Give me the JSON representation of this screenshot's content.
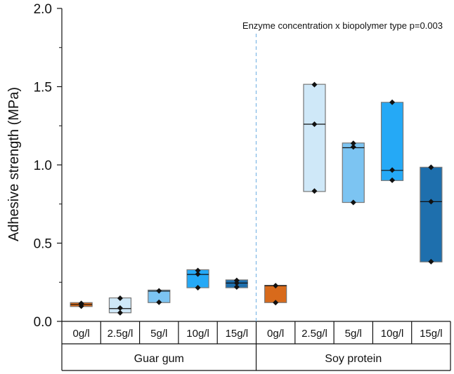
{
  "chart_data": {
    "type": "box",
    "ylabel": "Adhesive strength (MPa)",
    "ylim": [
      0,
      2.0
    ],
    "yticks": [
      0.0,
      0.5,
      1.0,
      1.5,
      2.0
    ],
    "ytick_labels": [
      "0.0",
      "0.5",
      "1.0",
      "1.5",
      "2.0"
    ],
    "annotation": "Enzyme concentration x biopolymer type p=0.003",
    "groups": [
      {
        "name": "Guar gum",
        "categories": [
          {
            "label": "0g/l",
            "min": 0.095,
            "max": 0.12,
            "median": 0.108,
            "points": [
              0.097,
              0.11,
              0.115
            ],
            "color": "#d86a1b"
          },
          {
            "label": "2.5g/l",
            "min": 0.055,
            "max": 0.15,
            "median": 0.082,
            "points": [
              0.055,
              0.085,
              0.148
            ],
            "color": "#cfe8f8"
          },
          {
            "label": "5g/l",
            "min": 0.12,
            "max": 0.2,
            "median": 0.193,
            "points": [
              0.122,
              0.195
            ],
            "color": "#7cc4f2"
          },
          {
            "label": "10g/l",
            "min": 0.215,
            "max": 0.33,
            "median": 0.3,
            "points": [
              0.215,
              0.302,
              0.325
            ],
            "color": "#25a9f6"
          },
          {
            "label": "15g/l",
            "min": 0.215,
            "max": 0.265,
            "median": 0.245,
            "points": [
              0.22,
              0.245,
              0.262
            ],
            "color": "#1e6fad"
          }
        ]
      },
      {
        "name": "Soy protein",
        "categories": [
          {
            "label": "0g/l",
            "min": 0.12,
            "max": 0.23,
            "median": 0.228,
            "points": [
              0.12,
              0.228
            ],
            "color": "#d86a1b"
          },
          {
            "label": "2.5g/l",
            "min": 0.83,
            "max": 1.515,
            "median": 1.26,
            "points": [
              0.833,
              1.26,
              1.513
            ],
            "color": "#cfe8f8"
          },
          {
            "label": "5g/l",
            "min": 0.76,
            "max": 1.14,
            "median": 1.11,
            "points": [
              0.76,
              1.115,
              1.138
            ],
            "color": "#7cc4f2"
          },
          {
            "label": "10g/l",
            "min": 0.9,
            "max": 1.4,
            "median": 0.965,
            "points": [
              0.902,
              0.967,
              1.4
            ],
            "color": "#25a9f6"
          },
          {
            "label": "15g/l",
            "min": 0.38,
            "max": 0.985,
            "median": 0.765,
            "points": [
              0.382,
              0.765,
              0.985
            ],
            "color": "#1e6fad"
          }
        ]
      }
    ]
  }
}
